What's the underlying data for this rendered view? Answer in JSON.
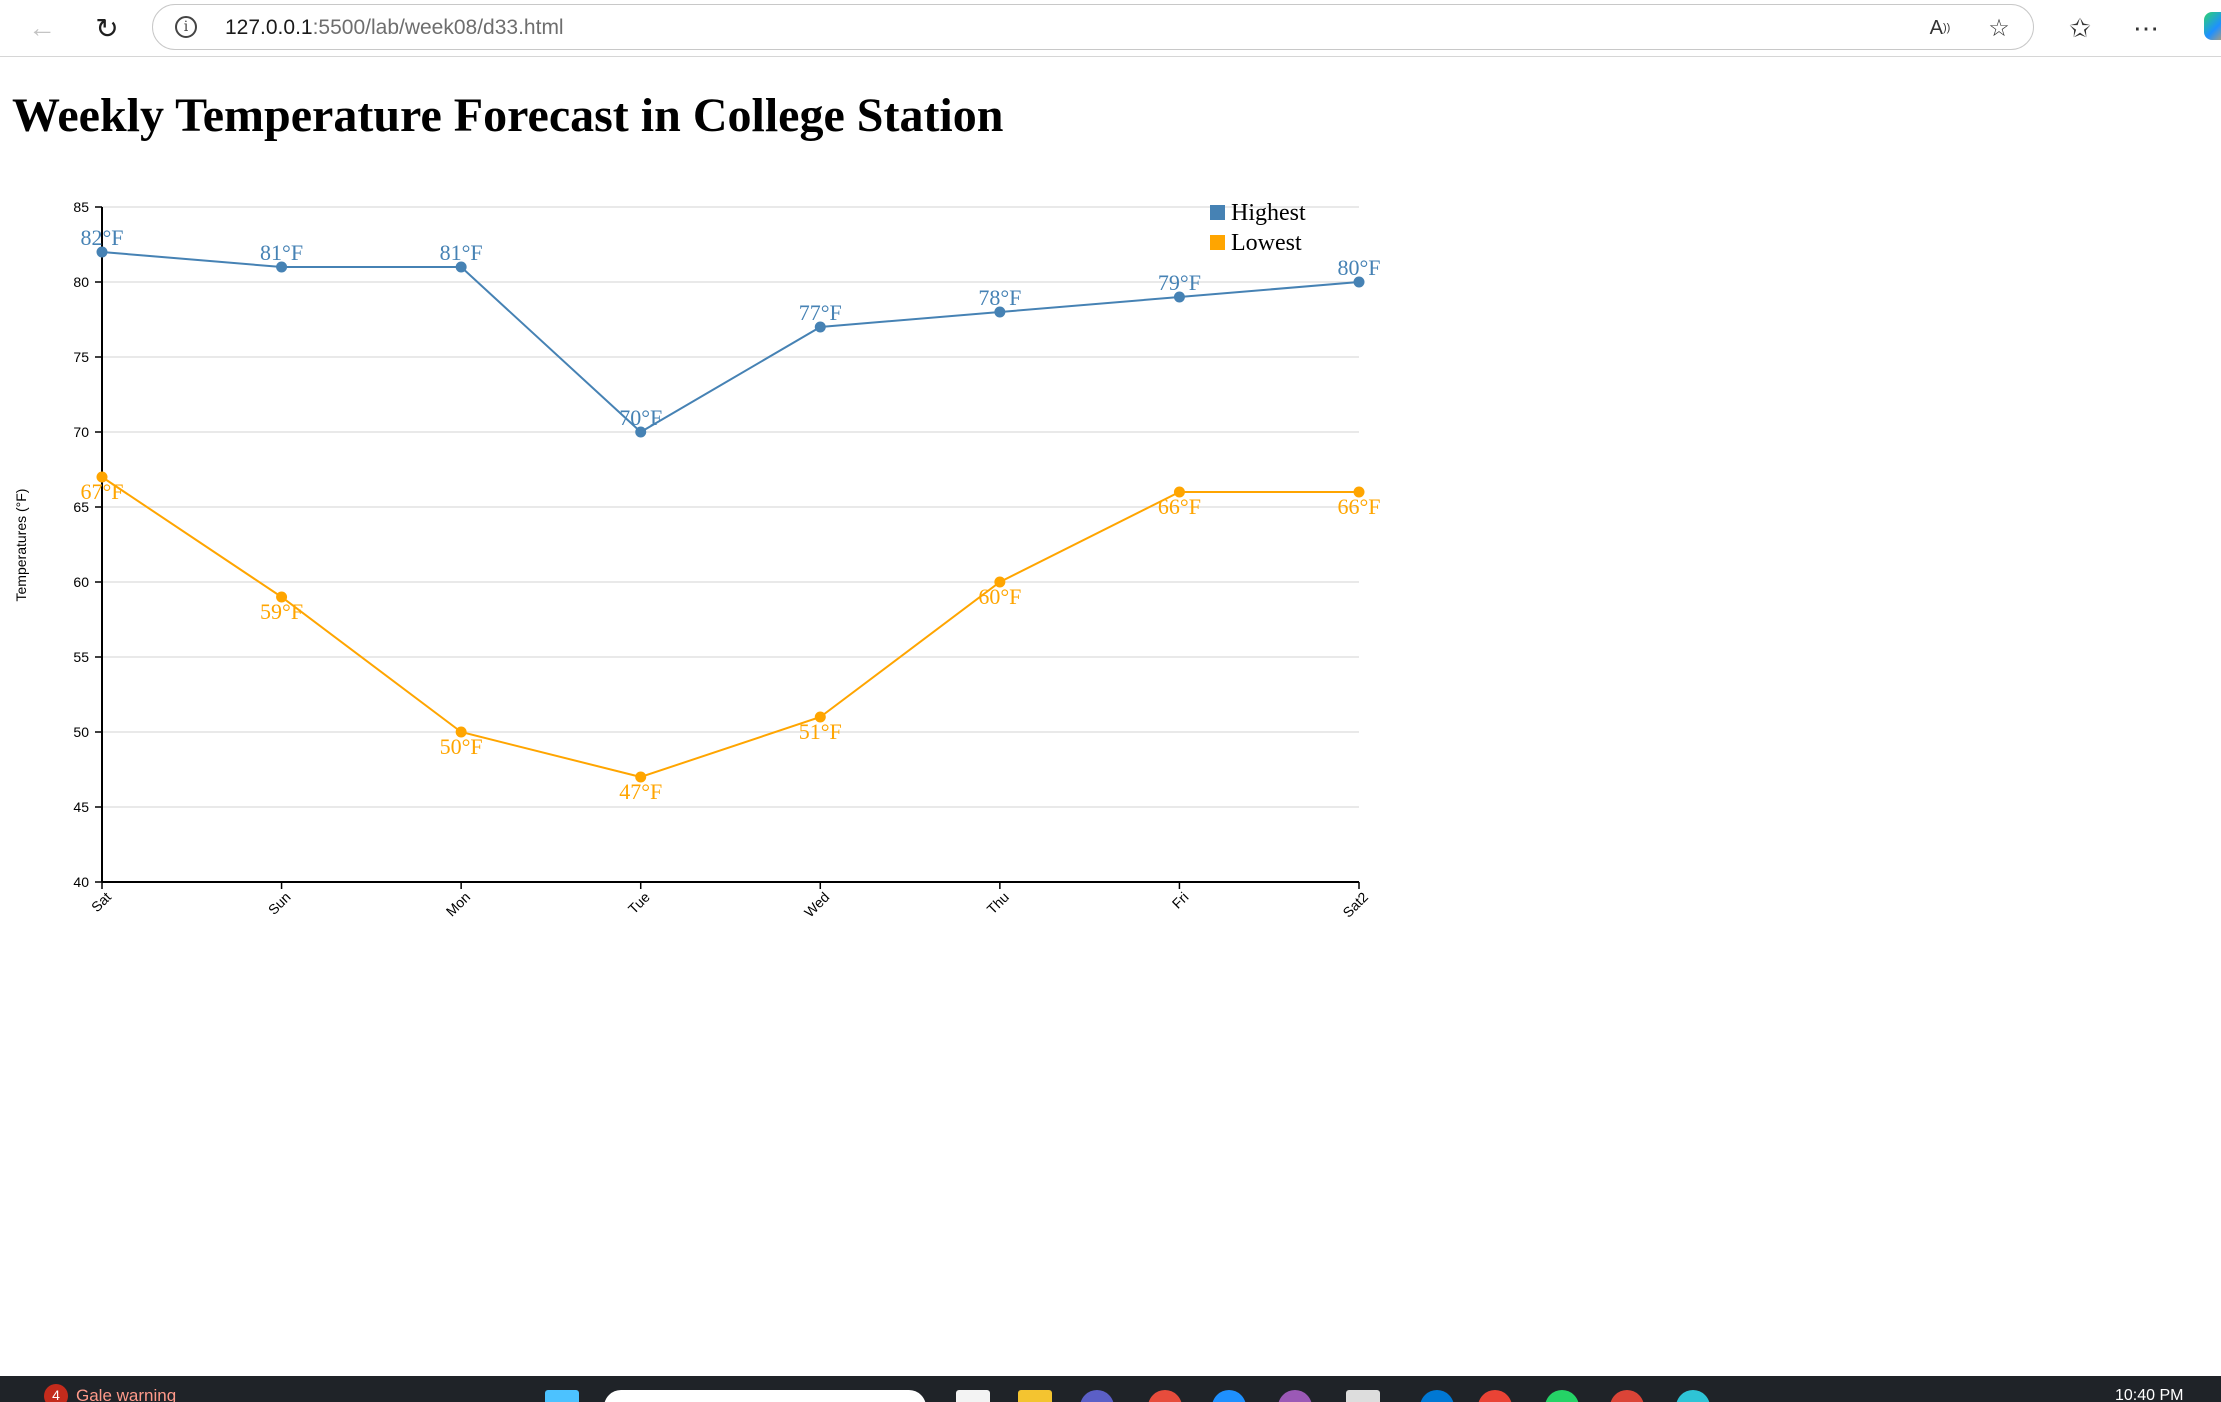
{
  "browser": {
    "url_host": "127.0.0.1",
    "url_path": ":5500/lab/week08/d33.html"
  },
  "page": {
    "title": "Weekly Temperature Forecast in College Station"
  },
  "chart_data": {
    "type": "line",
    "categories": [
      "Sat",
      "Sun",
      "Mon",
      "Tue",
      "Wed",
      "Thu",
      "Fri",
      "Sat2"
    ],
    "series": [
      {
        "name": "Highest",
        "values": [
          82,
          81,
          81,
          70,
          77,
          78,
          79,
          80
        ],
        "color": "#4682b4",
        "labels": [
          "82°F",
          "81°F",
          "81°F",
          "70°F",
          "77°F",
          "78°F",
          "79°F",
          "80°F"
        ]
      },
      {
        "name": "Lowest",
        "values": [
          67,
          59,
          50,
          47,
          51,
          60,
          66,
          66
        ],
        "color": "#ffa500",
        "labels": [
          "67°F",
          "59°F",
          "50°F",
          "47°F",
          "51°F",
          "60°F",
          "66°F",
          "66°F"
        ]
      }
    ],
    "ylabel": "Temperatures (°F)",
    "ylim": [
      40,
      85
    ],
    "yticks": [
      "40",
      "45",
      "50",
      "55",
      "60",
      "65",
      "70",
      "75",
      "80",
      "85"
    ],
    "grid": true,
    "legend_position": "top-right"
  },
  "taskbar": {
    "weather_count": "4",
    "weather_text": "Gale warning",
    "clock": "10:40 PM"
  }
}
